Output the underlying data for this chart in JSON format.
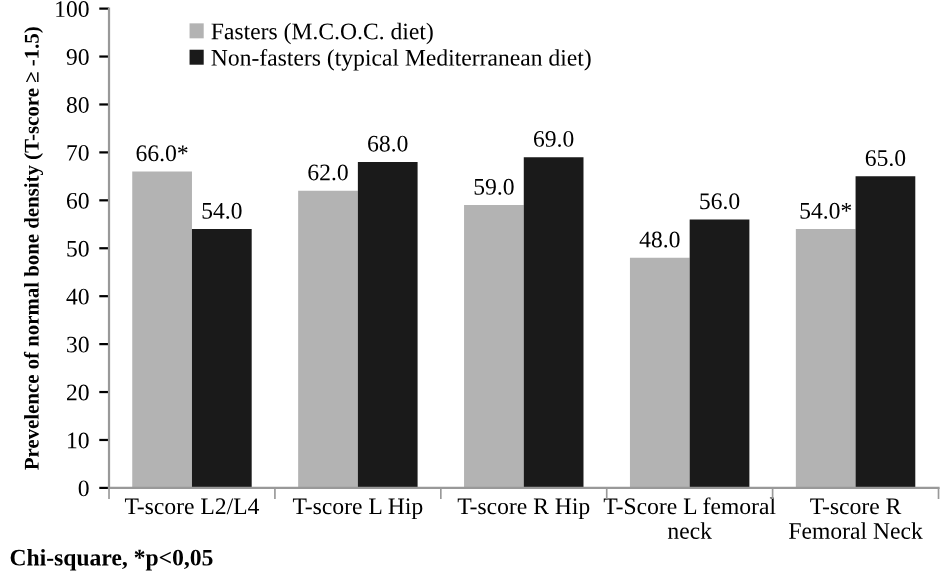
{
  "chart_data": {
    "type": "bar",
    "categories": [
      "T-score L2/L4",
      "T-score L Hip",
      "T-score R Hip",
      "T-Score L femoral\nneck",
      "T-score R\nFemoral Neck"
    ],
    "series": [
      {
        "name": "Fasters (M.C.O.C. diet)",
        "color": "#b3b3b3",
        "values": [
          66.0,
          62.0,
          59.0,
          48.0,
          54.0
        ],
        "value_labels": [
          "66.0*",
          "62.0",
          "59.0",
          "48.0",
          "54.0*"
        ]
      },
      {
        "name": "Non-fasters (typical Mediterranean diet)",
        "color": "#1a1a1a",
        "values": [
          54.0,
          68.0,
          69.0,
          56.0,
          65.0
        ],
        "value_labels": [
          "54.0",
          "68.0",
          "69.0",
          "56.0",
          "65.0"
        ]
      }
    ],
    "ylabel": "Prevelence of normal bone density (T-score ≥ -1.5)",
    "ylim": [
      0,
      100
    ],
    "yticks": [
      0,
      10,
      20,
      30,
      40,
      50,
      60,
      70,
      80,
      90,
      100
    ],
    "grid": false,
    "legend": "top left",
    "annotations": [
      "Chi-square, *p<0,05"
    ]
  }
}
